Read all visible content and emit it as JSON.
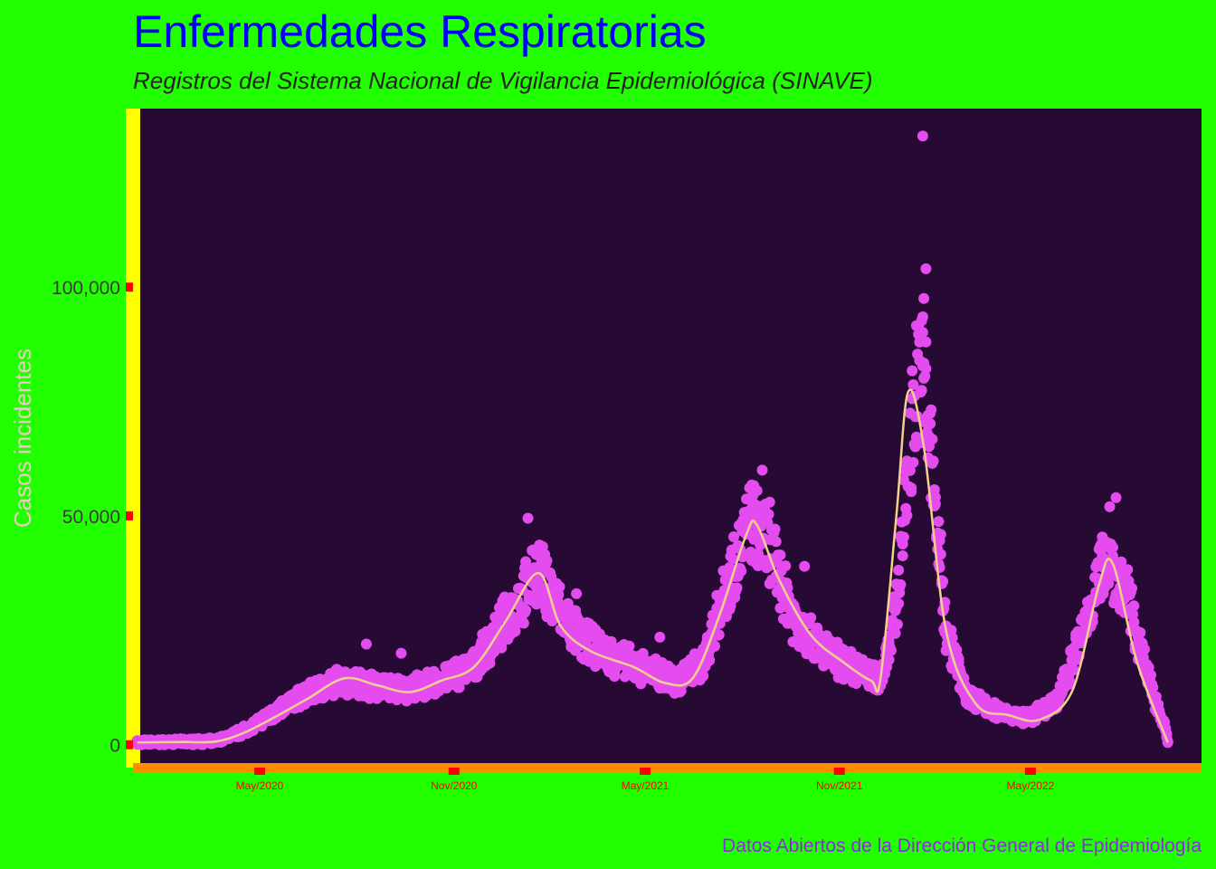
{
  "colors": {
    "page_background": "#22ff00",
    "panel_background": "#260a33",
    "points": "#e44cf0",
    "smooth_line": "#f5cf8e",
    "y_axis_line": "#ffff00",
    "x_axis_line": "#ff8c00",
    "ticks": "#ff0000",
    "title": "#0000ff",
    "subtitle": "#222222",
    "ylabel": "#f0c8c8",
    "ytick_label": "#3a3a3a",
    "xtick_label": "#ff0000",
    "caption": "#8a2be2"
  },
  "chart_data": {
    "type": "scatter",
    "title": "Enfermedades Respiratorias",
    "subtitle": "Registros del Sistema Nacional de Vigilancia Epidemiológica (SINAVE)",
    "xlabel": "",
    "ylabel": "Casos incidentes",
    "caption": "Datos Abiertos de la Dirección General de Epidemiología",
    "x_axis": {
      "type": "date",
      "range": [
        "2020-01-02",
        "2022-10-10"
      ],
      "tick_values": [
        "2020-05-01",
        "2020-11-01",
        "2021-05-01",
        "2021-11-01",
        "2022-05-01"
      ],
      "tick_labels": [
        "May/2020",
        "Nov/2020",
        "May/2021",
        "Nov/2021",
        "May/2022"
      ]
    },
    "y_axis": {
      "range": [
        -5000,
        139000
      ],
      "tick_values": [
        0,
        50000,
        100000
      ],
      "tick_labels": [
        "0",
        "50,000",
        "100,000"
      ]
    },
    "grid": false,
    "legend": "none",
    "series": [
      {
        "kind": "points",
        "trend": [
          [
            "2020-01-06",
            500
          ],
          [
            "2020-02-15",
            600
          ],
          [
            "2020-03-20",
            800
          ],
          [
            "2020-04-10",
            2500
          ],
          [
            "2020-05-01",
            5000
          ],
          [
            "2020-06-01",
            9500
          ],
          [
            "2020-07-15",
            14000
          ],
          [
            "2020-08-15",
            13000
          ],
          [
            "2020-09-15",
            12000
          ],
          [
            "2020-10-15",
            13500
          ],
          [
            "2020-11-01",
            15500
          ],
          [
            "2020-11-20",
            17000
          ],
          [
            "2020-12-10",
            24000
          ],
          [
            "2021-01-01",
            31000
          ],
          [
            "2021-01-20",
            38000
          ],
          [
            "2021-02-10",
            29000
          ],
          [
            "2021-03-01",
            23000
          ],
          [
            "2021-04-01",
            19000
          ],
          [
            "2021-05-01",
            16500
          ],
          [
            "2021-06-01",
            14000
          ],
          [
            "2021-06-25",
            18000
          ],
          [
            "2021-07-15",
            33000
          ],
          [
            "2021-08-10",
            49000
          ],
          [
            "2021-08-25",
            44000
          ],
          [
            "2021-09-20",
            27000
          ],
          [
            "2021-10-20",
            20000
          ],
          [
            "2021-11-20",
            16000
          ],
          [
            "2021-12-10",
            14000
          ],
          [
            "2021-12-25",
            30000
          ],
          [
            "2022-01-05",
            60000
          ],
          [
            "2022-01-15",
            84000
          ],
          [
            "2022-01-25",
            68000
          ],
          [
            "2022-02-10",
            25000
          ],
          [
            "2022-03-01",
            11000
          ],
          [
            "2022-04-01",
            7000
          ],
          [
            "2022-05-01",
            6000
          ],
          [
            "2022-05-25",
            9000
          ],
          [
            "2022-06-20",
            25000
          ],
          [
            "2022-07-12",
            42000
          ],
          [
            "2022-08-01",
            32000
          ],
          [
            "2022-08-20",
            15000
          ],
          [
            "2022-09-05",
            4000
          ],
          [
            "2022-09-08",
            500
          ]
        ],
        "outliers": [
          [
            "2022-01-19",
            133000
          ],
          [
            "2022-01-22",
            104000
          ],
          [
            "2022-01-20",
            97500
          ],
          [
            "2022-01-19",
            93500
          ],
          [
            "2022-01-22",
            88000
          ],
          [
            "2021-08-20",
            60000
          ],
          [
            "2021-08-27",
            53000
          ],
          [
            "2021-01-10",
            49500
          ],
          [
            "2022-07-21",
            54000
          ],
          [
            "2022-07-15",
            52000
          ],
          [
            "2020-08-10",
            22000
          ],
          [
            "2020-09-12",
            20000
          ],
          [
            "2021-02-25",
            33000
          ],
          [
            "2021-09-29",
            39000
          ],
          [
            "2021-05-15",
            23500
          ]
        ]
      },
      {
        "kind": "smooth_line",
        "values": [
          [
            "2020-01-06",
            500
          ],
          [
            "2020-02-15",
            600
          ],
          [
            "2020-03-20",
            700
          ],
          [
            "2020-04-15",
            2500
          ],
          [
            "2020-05-15",
            6000
          ],
          [
            "2020-06-15",
            10000
          ],
          [
            "2020-07-20",
            14500
          ],
          [
            "2020-08-20",
            13000
          ],
          [
            "2020-09-20",
            11500
          ],
          [
            "2020-10-20",
            14000
          ],
          [
            "2020-11-20",
            17000
          ],
          [
            "2020-12-20",
            27000
          ],
          [
            "2021-01-20",
            37500
          ],
          [
            "2021-02-10",
            26000
          ],
          [
            "2021-03-10",
            20500
          ],
          [
            "2021-04-20",
            17000
          ],
          [
            "2021-05-20",
            13500
          ],
          [
            "2021-06-15",
            14500
          ],
          [
            "2021-07-10",
            28000
          ],
          [
            "2021-08-05",
            46000
          ],
          [
            "2021-08-15",
            48000
          ],
          [
            "2021-09-05",
            36000
          ],
          [
            "2021-10-05",
            24000
          ],
          [
            "2021-11-05",
            18000
          ],
          [
            "2021-12-01",
            14000
          ],
          [
            "2021-12-10",
            14500
          ],
          [
            "2021-12-25",
            50000
          ],
          [
            "2022-01-05",
            77000
          ],
          [
            "2022-01-20",
            65000
          ],
          [
            "2022-02-10",
            25000
          ],
          [
            "2022-03-10",
            9000
          ],
          [
            "2022-04-10",
            6500
          ],
          [
            "2022-05-10",
            5500
          ],
          [
            "2022-06-10",
            12000
          ],
          [
            "2022-07-05",
            35000
          ],
          [
            "2022-07-18",
            39500
          ],
          [
            "2022-08-10",
            18000
          ],
          [
            "2022-09-08",
            500
          ]
        ]
      }
    ]
  }
}
